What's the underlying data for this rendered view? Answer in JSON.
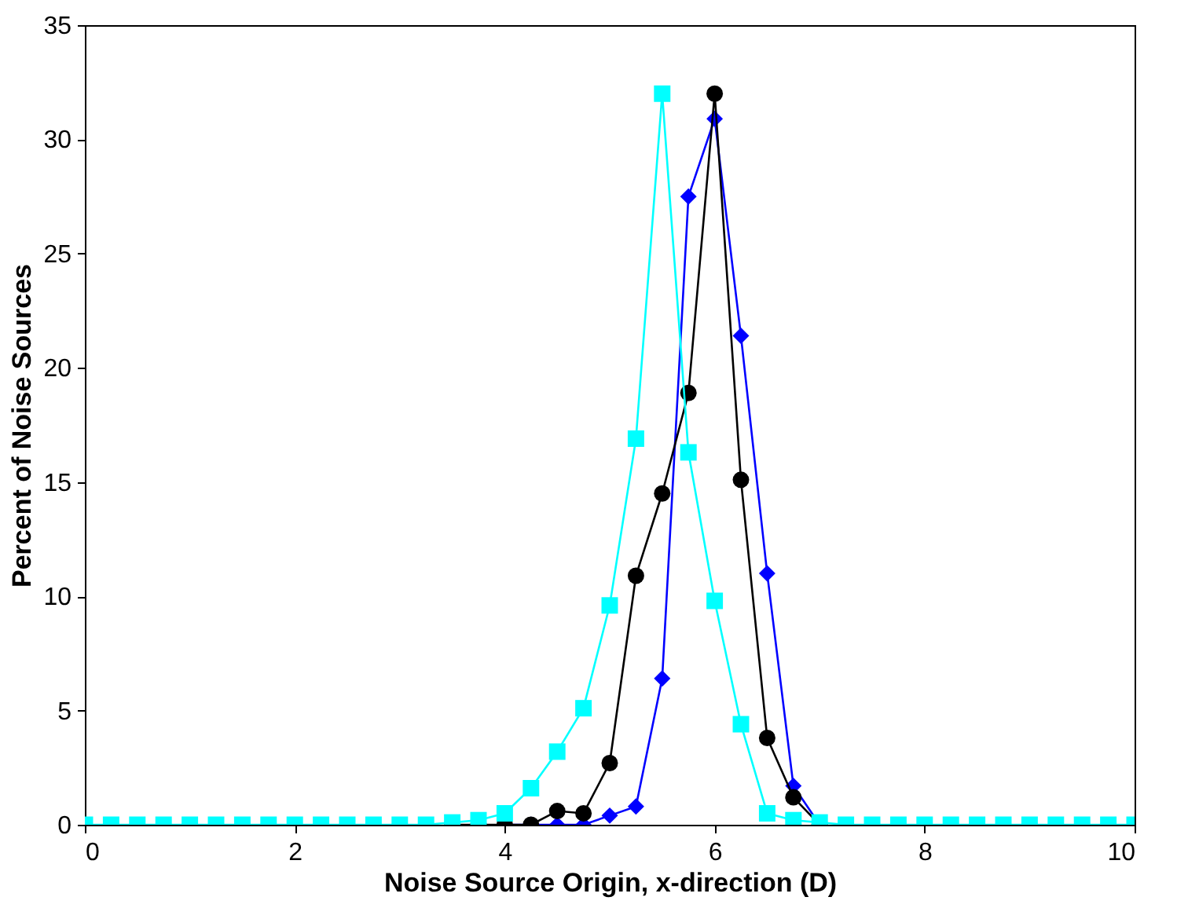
{
  "chart_data": {
    "type": "line",
    "xlabel": "Noise Source Origin, x-direction (D)",
    "ylabel": "Percent of Noise Sources",
    "x": [
      0,
      0.25,
      0.5,
      0.75,
      1,
      1.25,
      1.5,
      1.75,
      2,
      2.25,
      2.5,
      2.75,
      3,
      3.25,
      3.5,
      3.75,
      4,
      4.25,
      4.5,
      4.75,
      5,
      5.25,
      5.5,
      5.75,
      6,
      6.25,
      6.5,
      6.75,
      7,
      7.25,
      7.5,
      7.75,
      8,
      8.25,
      8.5,
      8.75,
      9,
      9.25,
      9.5,
      9.75,
      10
    ],
    "series": [
      {
        "color": "#0000ff",
        "marker": "diamond",
        "values": [
          null,
          null,
          null,
          null,
          null,
          null,
          null,
          null,
          null,
          null,
          null,
          null,
          null,
          null,
          null,
          null,
          0,
          0,
          0,
          0,
          0.4,
          0.8,
          6.4,
          27.5,
          30.9,
          21.4,
          11,
          1.7,
          0,
          null,
          null,
          null,
          null,
          null,
          null,
          null,
          null,
          null,
          null,
          null,
          null
        ]
      },
      {
        "color": "#000000",
        "marker": "circle",
        "values": [
          null,
          null,
          null,
          null,
          null,
          null,
          null,
          null,
          null,
          null,
          null,
          null,
          null,
          null,
          0,
          0,
          0,
          0,
          0.6,
          0.5,
          2.7,
          10.9,
          14.5,
          18.9,
          32,
          15.1,
          3.8,
          1.2,
          0,
          null,
          null,
          null,
          null,
          null,
          null,
          null,
          null,
          null,
          null,
          null,
          null
        ]
      },
      {
        "color": "#00ffff",
        "marker": "square",
        "values": [
          0,
          0,
          0,
          0,
          0,
          0,
          0,
          0,
          0,
          0,
          0,
          0,
          0,
          0,
          0.1,
          0.2,
          0.5,
          1.6,
          3.2,
          5.1,
          9.6,
          16.9,
          32,
          16.3,
          9.8,
          4.4,
          0.5,
          0.2,
          0.1,
          0,
          0,
          0,
          0,
          0,
          0,
          0,
          0,
          0,
          0,
          0,
          0
        ]
      }
    ],
    "xlim": [
      0,
      10
    ],
    "xticks": [
      0,
      2,
      4,
      6,
      8,
      10
    ],
    "ylim": [
      0,
      35
    ],
    "yticks": [
      0,
      5,
      10,
      15,
      20,
      25,
      30,
      35
    ],
    "grid": false,
    "line_style": "solid"
  }
}
